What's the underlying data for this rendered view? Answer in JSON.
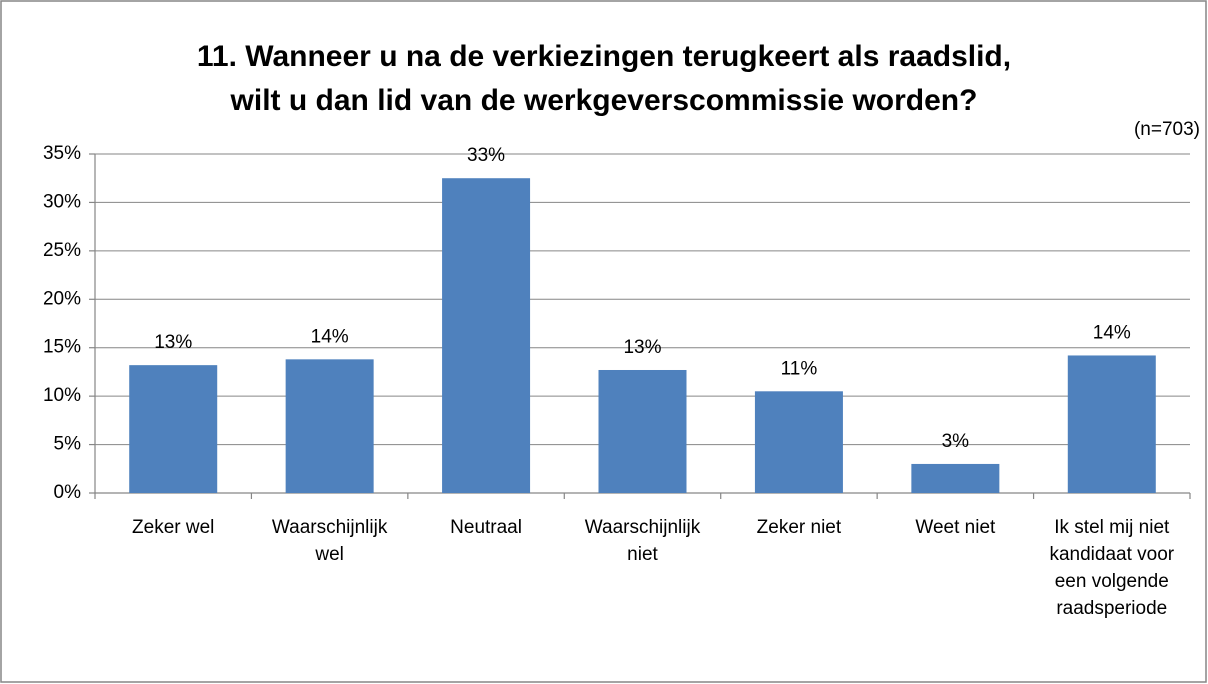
{
  "chart_data": {
    "type": "bar",
    "title": [
      "11. Wanneer u na de verkiezingen terugkeert als raadslid,",
      "wilt u dan lid van de werkgeverscommissie worden?"
    ],
    "annotation": "(n=703)",
    "categories": [
      "Zeker wel",
      "Waarschijnlijk wel",
      "Neutraal",
      "Waarschijnlijk niet",
      "Zeker niet",
      "Weet niet",
      "Ik stel mij niet kandidaat voor een volgende raadsperiode"
    ],
    "values": [
      13.2,
      13.8,
      32.5,
      12.7,
      10.5,
      3.0,
      14.2
    ],
    "value_labels": [
      "13%",
      "14%",
      "33%",
      "13%",
      "11%",
      "3%",
      "14%"
    ],
    "color": "#4f81bd",
    "ylim": [
      0,
      35
    ],
    "yticks": [
      {
        "value": 0,
        "label": "0%"
      },
      {
        "value": 5,
        "label": "5%"
      },
      {
        "value": 10,
        "label": "10%"
      },
      {
        "value": 15,
        "label": "15%"
      },
      {
        "value": 20,
        "label": "20%"
      },
      {
        "value": 25,
        "label": "25%"
      },
      {
        "value": 30,
        "label": "30%"
      },
      {
        "value": 35,
        "label": "35%"
      }
    ],
    "grid": true
  }
}
